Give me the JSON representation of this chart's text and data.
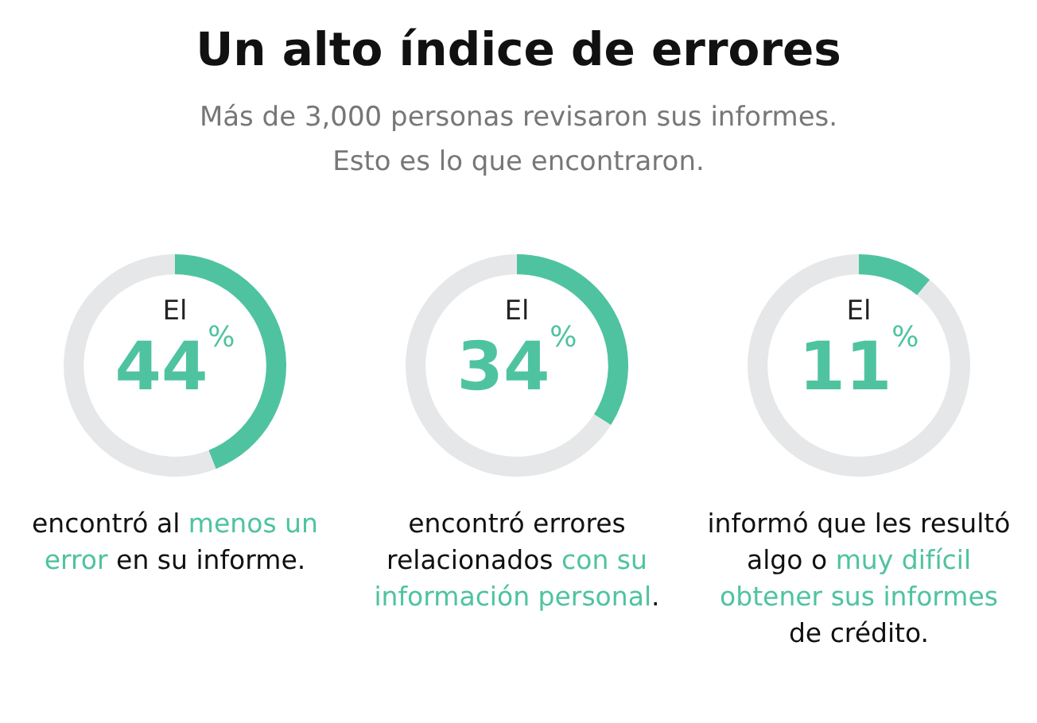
{
  "chart_data": [
    {
      "type": "donut",
      "title": "Un alto índice de errores",
      "subtitle": "Más de 3,000 personas revisaron sus informes.\nEsto es lo que encontraron.",
      "categories": [
        null,
        null
      ],
      "values": [
        44,
        56
      ],
      "colors": [
        "#4fc3a0",
        "#e6e7e8"
      ],
      "value_labels": [
        "44$^{%}$",
        null
      ],
      "legend": false,
      "annotations": [
        "El",
        "encontró al ",
        "menos un error",
        " en su informe."
      ]
    },
    {
      "type": "donut",
      "categories": [
        null,
        null
      ],
      "values": [
        34,
        66
      ],
      "colors": [
        "#4fc3a0",
        "#e6e7e8"
      ],
      "value_labels": [
        "34$^{%}$",
        null
      ],
      "legend": false,
      "annotations": [
        "El",
        "encontró errores relacionados ",
        "con su información personal",
        "."
      ]
    },
    {
      "type": "donut",
      "categories": [
        null,
        null
      ],
      "values": [
        11,
        89
      ],
      "colors": [
        "#4fc3a0",
        "#e6e7e8"
      ],
      "value_labels": [
        "11$^{%}$",
        null
      ],
      "legend": false,
      "annotations": [
        "El",
        "informó que les resultó algo o ",
        "muy difícil obtener sus informes",
        " de crédito."
      ]
    }
  ]
}
